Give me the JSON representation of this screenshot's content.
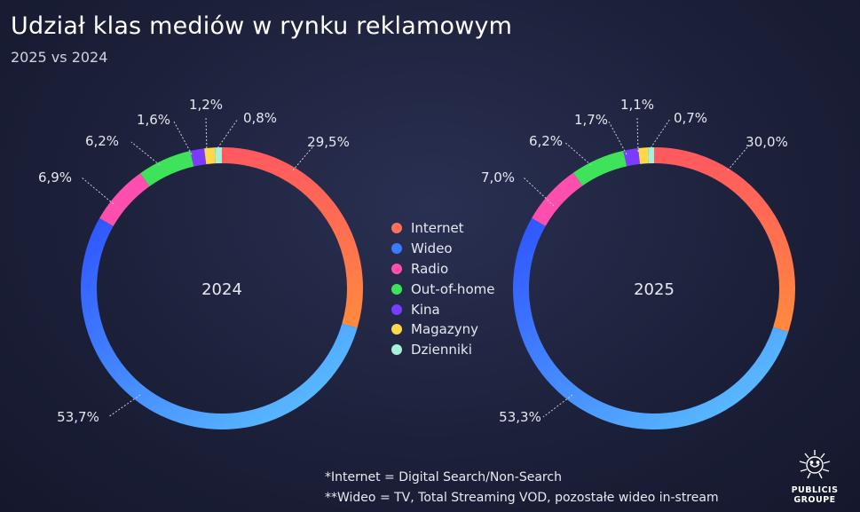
{
  "title": "Udział klas mediów w rynku reklamowym",
  "subtitle": "2025 vs 2024",
  "chart_data": [
    {
      "type": "pie",
      "donut": true,
      "center_label": "2024",
      "categories": [
        "Internet",
        "Wideo",
        "Radio",
        "Out-of-home",
        "Kina",
        "Magazyny",
        "Dzienniki"
      ],
      "values": [
        29.5,
        53.7,
        6.9,
        6.2,
        1.6,
        1.2,
        0.8
      ],
      "data_labels": [
        "29,5%",
        "53,7%",
        "6,9%",
        "6,2%",
        "1,6%",
        "1,2%",
        "0,8%"
      ]
    },
    {
      "type": "pie",
      "donut": true,
      "center_label": "2025",
      "categories": [
        "Internet",
        "Wideo",
        "Radio",
        "Out-of-home",
        "Kina",
        "Magazyny",
        "Dzienniki"
      ],
      "values": [
        30.0,
        53.3,
        7.0,
        6.2,
        1.7,
        1.1,
        0.7
      ],
      "data_labels": [
        "30,0%",
        "53,3%",
        "7,0%",
        "6,2%",
        "1,7%",
        "1,1%",
        "0,7%"
      ]
    }
  ],
  "legend": {
    "placement": "center",
    "items": [
      {
        "label": "Internet",
        "color": "#ff6f59"
      },
      {
        "label": "Wideo",
        "color": "#3a7bff"
      },
      {
        "label": "Radio",
        "color": "#ff4fae"
      },
      {
        "label": "Out-of-home",
        "color": "#3ee35a"
      },
      {
        "label": "Kina",
        "color": "#7a3cff"
      },
      {
        "label": "Magazyny",
        "color": "#ffd84a"
      },
      {
        "label": "Dzienniki",
        "color": "#a9f0d8"
      }
    ]
  },
  "footnotes": [
    "*Internet = Digital Search/Non-Search",
    "**Wideo = TV, Total Streaming VOD, pozostałe wideo in-stream"
  ],
  "logo": {
    "line1": "PUBLICIS",
    "line2": "GROUPE"
  }
}
